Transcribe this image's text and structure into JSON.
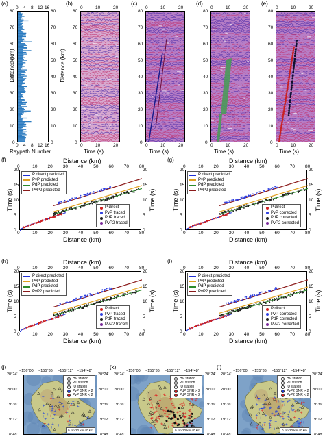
{
  "panels_top": {
    "a": {
      "label": "(a)",
      "xlabel": "Raypath Number",
      "top_ticks": [
        "0",
        "4",
        "8",
        "12",
        "16"
      ],
      "bottom_ticks": [
        "0",
        "4",
        "8",
        "12",
        "16"
      ],
      "ylabel_left": "Distance (km)",
      "ylabel_right": "Distance (km)"
    },
    "b": {
      "label": "(b)",
      "xlabel": "Time (s)",
      "top_ticks": [
        "0",
        "10",
        "20"
      ],
      "bottom_ticks": [
        "0",
        "10",
        "20"
      ]
    },
    "c": {
      "label": "(c)",
      "xlabel": "Time (s)",
      "top_ticks": [
        "0",
        "10",
        "20"
      ],
      "bottom_ticks": [
        "0",
        "10",
        "20"
      ]
    },
    "d": {
      "label": "(d)",
      "xlabel": "Time (s)",
      "top_ticks": [
        "0",
        "10",
        "20"
      ],
      "bottom_ticks": [
        "0",
        "10",
        "20"
      ]
    },
    "e": {
      "label": "(e)",
      "xlabel": "Time (s)",
      "top_ticks": [
        "0",
        "10",
        "20"
      ],
      "bottom_ticks": [
        "0",
        "10",
        "20"
      ]
    },
    "y_ticks": [
      "0",
      "10",
      "20",
      "30",
      "40",
      "50",
      "60",
      "70",
      "80"
    ]
  },
  "traveltime": {
    "xlabel": "Distance (km)",
    "ylabel": "Time (s)",
    "x_ticks": [
      "0",
      "10",
      "20",
      "30",
      "40",
      "50",
      "60",
      "70",
      "80"
    ],
    "y_ticks": [
      "0",
      "5",
      "10",
      "15",
      "20"
    ],
    "panels": [
      {
        "label": "(f)",
        "legend_lines": [
          "P direct predicted",
          "PvP predicted",
          "PdP predicted",
          "PvP2 predicted"
        ],
        "legend_marks": [
          "P direct",
          "PvP traced",
          "PdP traced",
          "PvP2 traced"
        ]
      },
      {
        "label": "(g)",
        "legend_lines": [
          "P direct predicted",
          "PvP predicted",
          "PdP predicted",
          "PvP2 predicted"
        ],
        "legend_marks": [
          "P direct",
          "PvP corrected",
          "PdP corrected",
          "PvP2 corrected"
        ]
      },
      {
        "label": "(h)",
        "legend_lines": [
          "P direct predicted",
          "PvP predicted",
          "PdP predicted",
          "PvP2 predicted"
        ],
        "legend_marks": [
          "P direct",
          "PvP traced",
          "PdP traced",
          "PvP2 traced"
        ]
      },
      {
        "label": "(i)",
        "legend_lines": [
          "P direct predicted",
          "PvP predicted",
          "PdP predicted",
          "PvP2 predicted"
        ],
        "legend_marks": [
          "P direct",
          "PvP corrected",
          "PdP corrected",
          "PvP2 corrected"
        ]
      }
    ],
    "colors": {
      "p_direct": "#1f2fd6",
      "pvp": "#e0a020",
      "pdp": "#2b8a2b",
      "pvp2": "#8b1a1a"
    }
  },
  "chart_data": [
    {
      "type": "line",
      "panel": "(f)",
      "xlabel": "Distance (km)",
      "ylabel": "Time (s)",
      "xlim": [
        0,
        80
      ],
      "ylim": [
        0,
        20
      ],
      "series": [
        {
          "name": "P direct predicted",
          "x": [
            0,
            5,
            10,
            20,
            30
          ],
          "y": [
            0,
            1.5,
            2.6,
            4.5,
            6.0
          ]
        },
        {
          "name": "PvP predicted",
          "x": [
            22,
            40,
            60,
            80
          ],
          "y": [
            6.3,
            9.1,
            12.0,
            15.0
          ]
        },
        {
          "name": "PdP predicted",
          "x": [
            22,
            40,
            60,
            80
          ],
          "y": [
            5.5,
            8.2,
            11.0,
            14.0
          ]
        },
        {
          "name": "PvP2 predicted",
          "x": [
            22,
            40,
            60,
            80
          ],
          "y": [
            8.3,
            11.2,
            14.3,
            17.3
          ]
        }
      ]
    }
  ],
  "maps": [
    {
      "label": "(j)",
      "top_ticks": [
        "−156°00'",
        "−155°36'",
        "−155°12'",
        "−154°48'"
      ],
      "legend": [
        "HV station",
        "PT station",
        "IU station",
        "PvP SNR > 2",
        "PvP SNR < 2"
      ],
      "scale": [
        "0 km",
        "20 km",
        "40 km"
      ]
    },
    {
      "label": "(k)",
      "top_ticks": [
        "−156°00'",
        "−155°36'",
        "−155°12'",
        "−154°48'"
      ],
      "legend": [
        "HV station",
        "PT station",
        "IU station",
        "PdP SNR > 2",
        "PdP SNR < 2"
      ],
      "scale": [
        "0 km",
        "20 km",
        "40 km"
      ]
    },
    {
      "label": "(l)",
      "top_ticks": [
        "−156°00'",
        "−155°36'",
        "−155°12'",
        "−154°48'"
      ],
      "legend": [
        "HV station",
        "PT station",
        "IU station",
        "PvP2 SNR > 2",
        "PvP2 SNR < 2"
      ],
      "scale": [
        "0 km",
        "20 km",
        "40 km"
      ]
    }
  ],
  "map_lat_ticks": [
    "20°24'",
    "20°00'",
    "19°36'",
    "19°12'",
    "18°48'"
  ]
}
